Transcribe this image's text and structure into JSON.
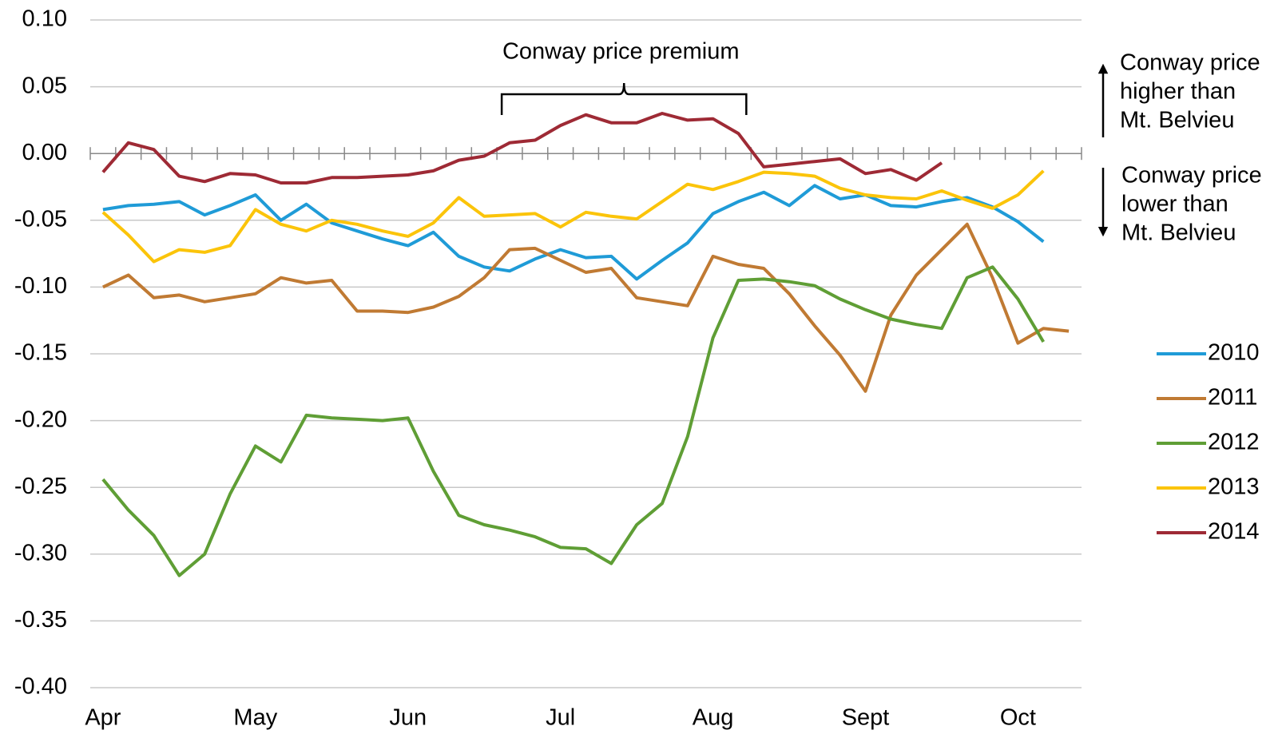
{
  "chart_data": {
    "type": "line",
    "categories": [
      "Apr",
      null,
      null,
      null,
      null,
      null,
      "May",
      null,
      null,
      null,
      null,
      null,
      "Jun",
      null,
      null,
      null,
      null,
      null,
      "Jul",
      null,
      null,
      null,
      null,
      null,
      "Aug",
      null,
      null,
      null,
      null,
      null,
      "Sept",
      null,
      null,
      null,
      null,
      null,
      "Oct",
      null,
      null
    ],
    "series": [
      {
        "name": "2010",
        "color": "#1f9bd7",
        "values": [
          -0.042,
          -0.039,
          -0.038,
          -0.036,
          -0.046,
          -0.039,
          -0.031,
          -0.05,
          -0.038,
          -0.052,
          -0.058,
          -0.064,
          -0.069,
          -0.059,
          -0.077,
          -0.085,
          -0.088,
          -0.079,
          -0.072,
          -0.078,
          -0.077,
          -0.094,
          -0.08,
          -0.067,
          -0.045,
          -0.036,
          -0.029,
          -0.039,
          -0.024,
          -0.034,
          -0.031,
          -0.039,
          -0.04,
          -0.036,
          -0.033,
          -0.04,
          -0.051,
          -0.066,
          null
        ]
      },
      {
        "name": "2011",
        "color": "#c07a33",
        "values": [
          -0.1,
          -0.091,
          -0.108,
          -0.106,
          -0.111,
          -0.108,
          -0.105,
          -0.093,
          -0.097,
          -0.095,
          -0.118,
          -0.118,
          -0.119,
          -0.115,
          -0.107,
          -0.093,
          -0.072,
          -0.071,
          -0.08,
          -0.089,
          -0.086,
          -0.108,
          -0.111,
          -0.114,
          -0.077,
          -0.083,
          -0.086,
          -0.105,
          -0.129,
          -0.151,
          -0.178,
          -0.121,
          -0.091,
          -0.072,
          -0.053,
          -0.093,
          -0.142,
          -0.131,
          -0.133
        ]
      },
      {
        "name": "2012",
        "color": "#5f9e35",
        "values": [
          -0.244,
          -0.267,
          -0.286,
          -0.316,
          -0.3,
          -0.255,
          -0.219,
          -0.231,
          -0.196,
          -0.198,
          -0.199,
          -0.2,
          -0.198,
          -0.238,
          -0.271,
          -0.278,
          -0.282,
          -0.287,
          -0.295,
          -0.296,
          -0.307,
          -0.278,
          -0.262,
          -0.212,
          -0.138,
          -0.095,
          -0.094,
          -0.096,
          -0.099,
          -0.109,
          -0.117,
          -0.124,
          -0.128,
          -0.131,
          -0.093,
          -0.085,
          -0.109,
          -0.141,
          null
        ]
      },
      {
        "name": "2013",
        "color": "#fbc40a",
        "values": [
          -0.044,
          -0.061,
          -0.081,
          -0.072,
          -0.074,
          -0.069,
          -0.042,
          -0.053,
          -0.058,
          -0.05,
          -0.053,
          -0.058,
          -0.062,
          -0.052,
          -0.033,
          -0.047,
          -0.046,
          -0.045,
          -0.055,
          -0.044,
          -0.047,
          -0.049,
          -0.036,
          -0.023,
          -0.027,
          -0.021,
          -0.014,
          -0.015,
          -0.017,
          -0.026,
          -0.031,
          -0.033,
          -0.034,
          -0.028,
          -0.035,
          -0.041,
          -0.031,
          -0.013,
          null
        ]
      },
      {
        "name": "2014",
        "color": "#9e2a35",
        "values": [
          -0.014,
          0.008,
          0.003,
          -0.017,
          -0.021,
          -0.015,
          -0.016,
          -0.022,
          -0.022,
          -0.018,
          -0.018,
          -0.017,
          -0.016,
          -0.013,
          -0.005,
          -0.002,
          0.008,
          0.01,
          0.021,
          0.029,
          0.023,
          0.023,
          0.03,
          0.025,
          0.026,
          0.015,
          -0.01,
          -0.008,
          -0.006,
          -0.004,
          -0.015,
          -0.012,
          -0.02,
          -0.007,
          null,
          null,
          null,
          null,
          null
        ]
      }
    ],
    "ylim": [
      -0.4,
      0.1
    ],
    "yticks": [
      {
        "value": 0.1,
        "label": "0.10"
      },
      {
        "value": 0.05,
        "label": "0.05"
      },
      {
        "value": 0,
        "label": "0.00"
      },
      {
        "value": -0.05,
        "label": "-0.05"
      },
      {
        "value": -0.1,
        "label": "-0.10"
      },
      {
        "value": -0.15,
        "label": "-0.15"
      },
      {
        "value": -0.2,
        "label": "-0.20"
      },
      {
        "value": -0.25,
        "label": "-0.25"
      },
      {
        "value": -0.3,
        "label": "-0.30"
      },
      {
        "value": -0.35,
        "label": "-0.35"
      },
      {
        "value": -0.4,
        "label": "-0.40"
      }
    ],
    "grid": true,
    "legend": "right",
    "annotations": {
      "premium": "Conway price premium",
      "higher": [
        "Conway price",
        "higher than",
        "Mt. Belvieu"
      ],
      "lower": [
        "Conway price",
        "lower than",
        "Mt. Belvieu"
      ]
    }
  }
}
